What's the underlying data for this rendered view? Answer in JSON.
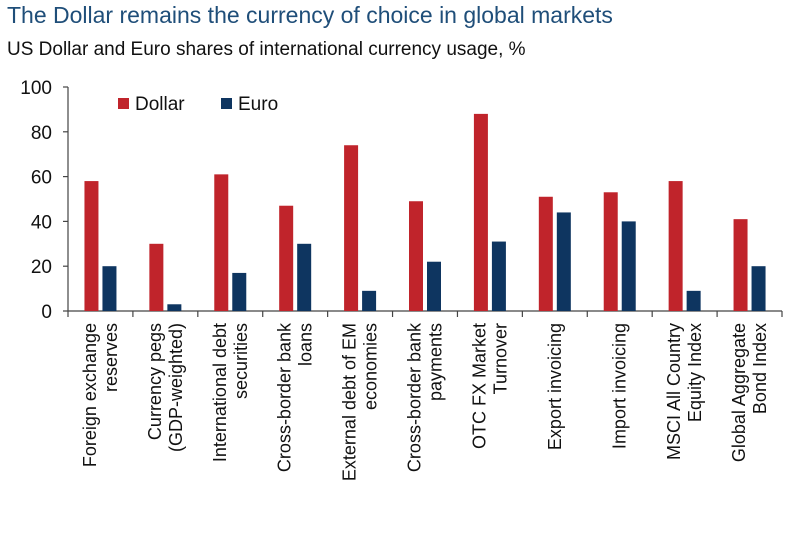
{
  "title": "The Dollar remains the currency of choice in global markets",
  "subtitle": "US Dollar and Euro shares of international currency usage, %",
  "chart_data": {
    "type": "bar",
    "title": "The Dollar remains the currency of choice in global markets",
    "subtitle": "US Dollar and Euro shares of international currency usage, %",
    "xlabel": "",
    "ylabel": "",
    "ylim": [
      0,
      100
    ],
    "yticks": [
      0,
      20,
      40,
      60,
      80,
      100
    ],
    "grid": false,
    "legend_position": "top-left",
    "categories": [
      [
        "Foreign exchange",
        "reserves"
      ],
      [
        "Currency pegs",
        "(GDP-weighted)"
      ],
      [
        "International debt",
        "securities"
      ],
      [
        "Cross-border bank",
        "loans"
      ],
      [
        "External debt of EM",
        "economies"
      ],
      [
        "Cross-border bank",
        "payments"
      ],
      [
        "OTC FX Market",
        "Turnover"
      ],
      [
        "Export invoicing"
      ],
      [
        "Import invoicing"
      ],
      [
        "MSCI All Country",
        "Equity Index"
      ],
      [
        "Global Aggregate",
        "Bond Index"
      ]
    ],
    "series": [
      {
        "name": "Dollar",
        "color": "#c0242b",
        "values": [
          58,
          30,
          61,
          47,
          74,
          49,
          88,
          51,
          53,
          58,
          41
        ]
      },
      {
        "name": "Euro",
        "color": "#0e3560",
        "values": [
          20,
          3,
          17,
          30,
          9,
          22,
          31,
          44,
          40,
          9,
          20
        ]
      }
    ]
  }
}
